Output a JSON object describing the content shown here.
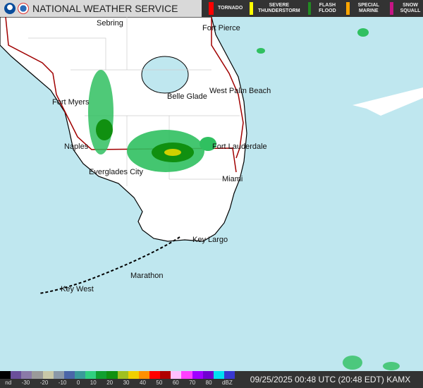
{
  "header": {
    "title": "NATIONAL WEATHER SERVICE",
    "warnings": [
      {
        "label": "TORNADO",
        "color": "#ff0000"
      },
      {
        "label": "SEVERE THUNDERSTORM",
        "color": "#ffff00"
      },
      {
        "label": "FLASH FLOOD",
        "color": "#228b22"
      },
      {
        "label": "SPECIAL MARINE",
        "color": "#ffa500"
      },
      {
        "label": "SNOW SQUALL",
        "color": "#c71585"
      }
    ]
  },
  "map": {
    "colors": {
      "ocean": "#bfe7ef",
      "land": "#ffffff",
      "roads": "#a00000"
    },
    "cities": [
      "Sebring",
      "Fort Pierce",
      "West Palm Beach",
      "Belle Glade",
      "Fort Myers",
      "Naples",
      "Fort Lauderdale",
      "Everglades City",
      "Miami",
      "Key Largo",
      "Marathon",
      "Key West"
    ]
  },
  "colorbar": {
    "labels": [
      "nd",
      "-30",
      "-20",
      "-10",
      "0",
      "10",
      "20",
      "30",
      "40",
      "50",
      "60",
      "70",
      "80",
      "dBZ"
    ],
    "colors": [
      "#000000",
      "#6a4f9a",
      "#8a7aa8",
      "#9a9a9a",
      "#c8c8a8",
      "#8a98a8",
      "#4a66a8",
      "#3a9a9a",
      "#30d080",
      "#10a030",
      "#109010",
      "#a0c020",
      "#f0d000",
      "#ff9000",
      "#ff0000",
      "#b00000",
      "#ffc0ff",
      "#ff40ff",
      "#a000ff",
      "#7000d0",
      "#00e0f0",
      "#3838d0"
    ]
  },
  "timestamp": "09/25/2025 00:48 UTC (20:48 EDT) KAMX"
}
